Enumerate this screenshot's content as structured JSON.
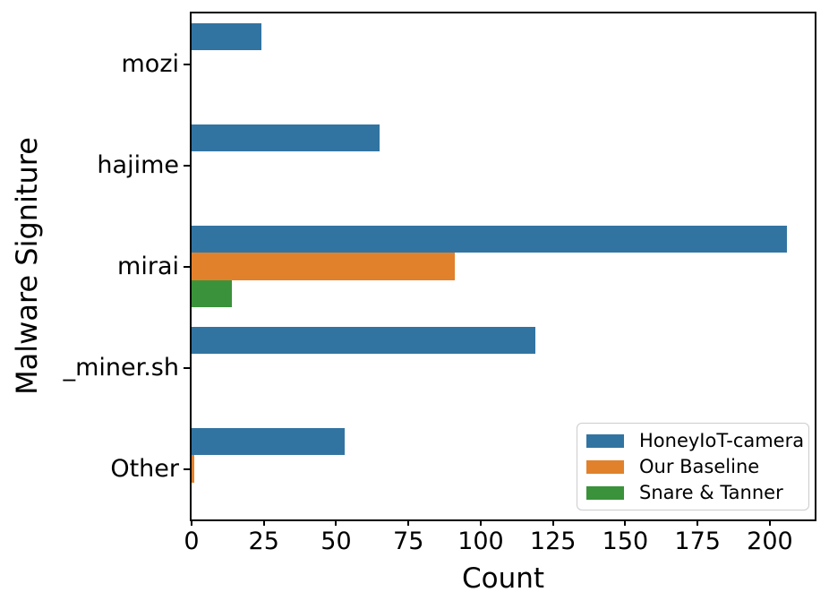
{
  "chart_data": {
    "type": "bar",
    "orientation": "horizontal",
    "title": "",
    "xlabel": "Count",
    "ylabel": "Malware Signiture",
    "categories": [
      "mozi",
      "hajime",
      "mirai",
      "_miner.sh",
      "Other"
    ],
    "series": [
      {
        "name": "HoneyIoT-camera",
        "color": "#3274a1",
        "values": [
          24,
          65,
          206,
          119,
          53
        ]
      },
      {
        "name": "Our Baseline",
        "color": "#e1812c",
        "values": [
          0,
          0,
          91,
          0,
          1
        ]
      },
      {
        "name": "Snare & Tanner",
        "color": "#3a923a",
        "values": [
          0,
          0,
          14,
          0,
          0
        ]
      }
    ],
    "xticks": [
      "0",
      "25",
      "50",
      "75",
      "100",
      "125",
      "150",
      "175",
      "200"
    ],
    "xtick_values": [
      0,
      25,
      50,
      75,
      100,
      125,
      150,
      175,
      200
    ],
    "xlim": [
      0,
      215.5
    ],
    "grid": false,
    "legend_position": "lower right",
    "axis_color": "#000000",
    "background_color": "#ffffff"
  }
}
